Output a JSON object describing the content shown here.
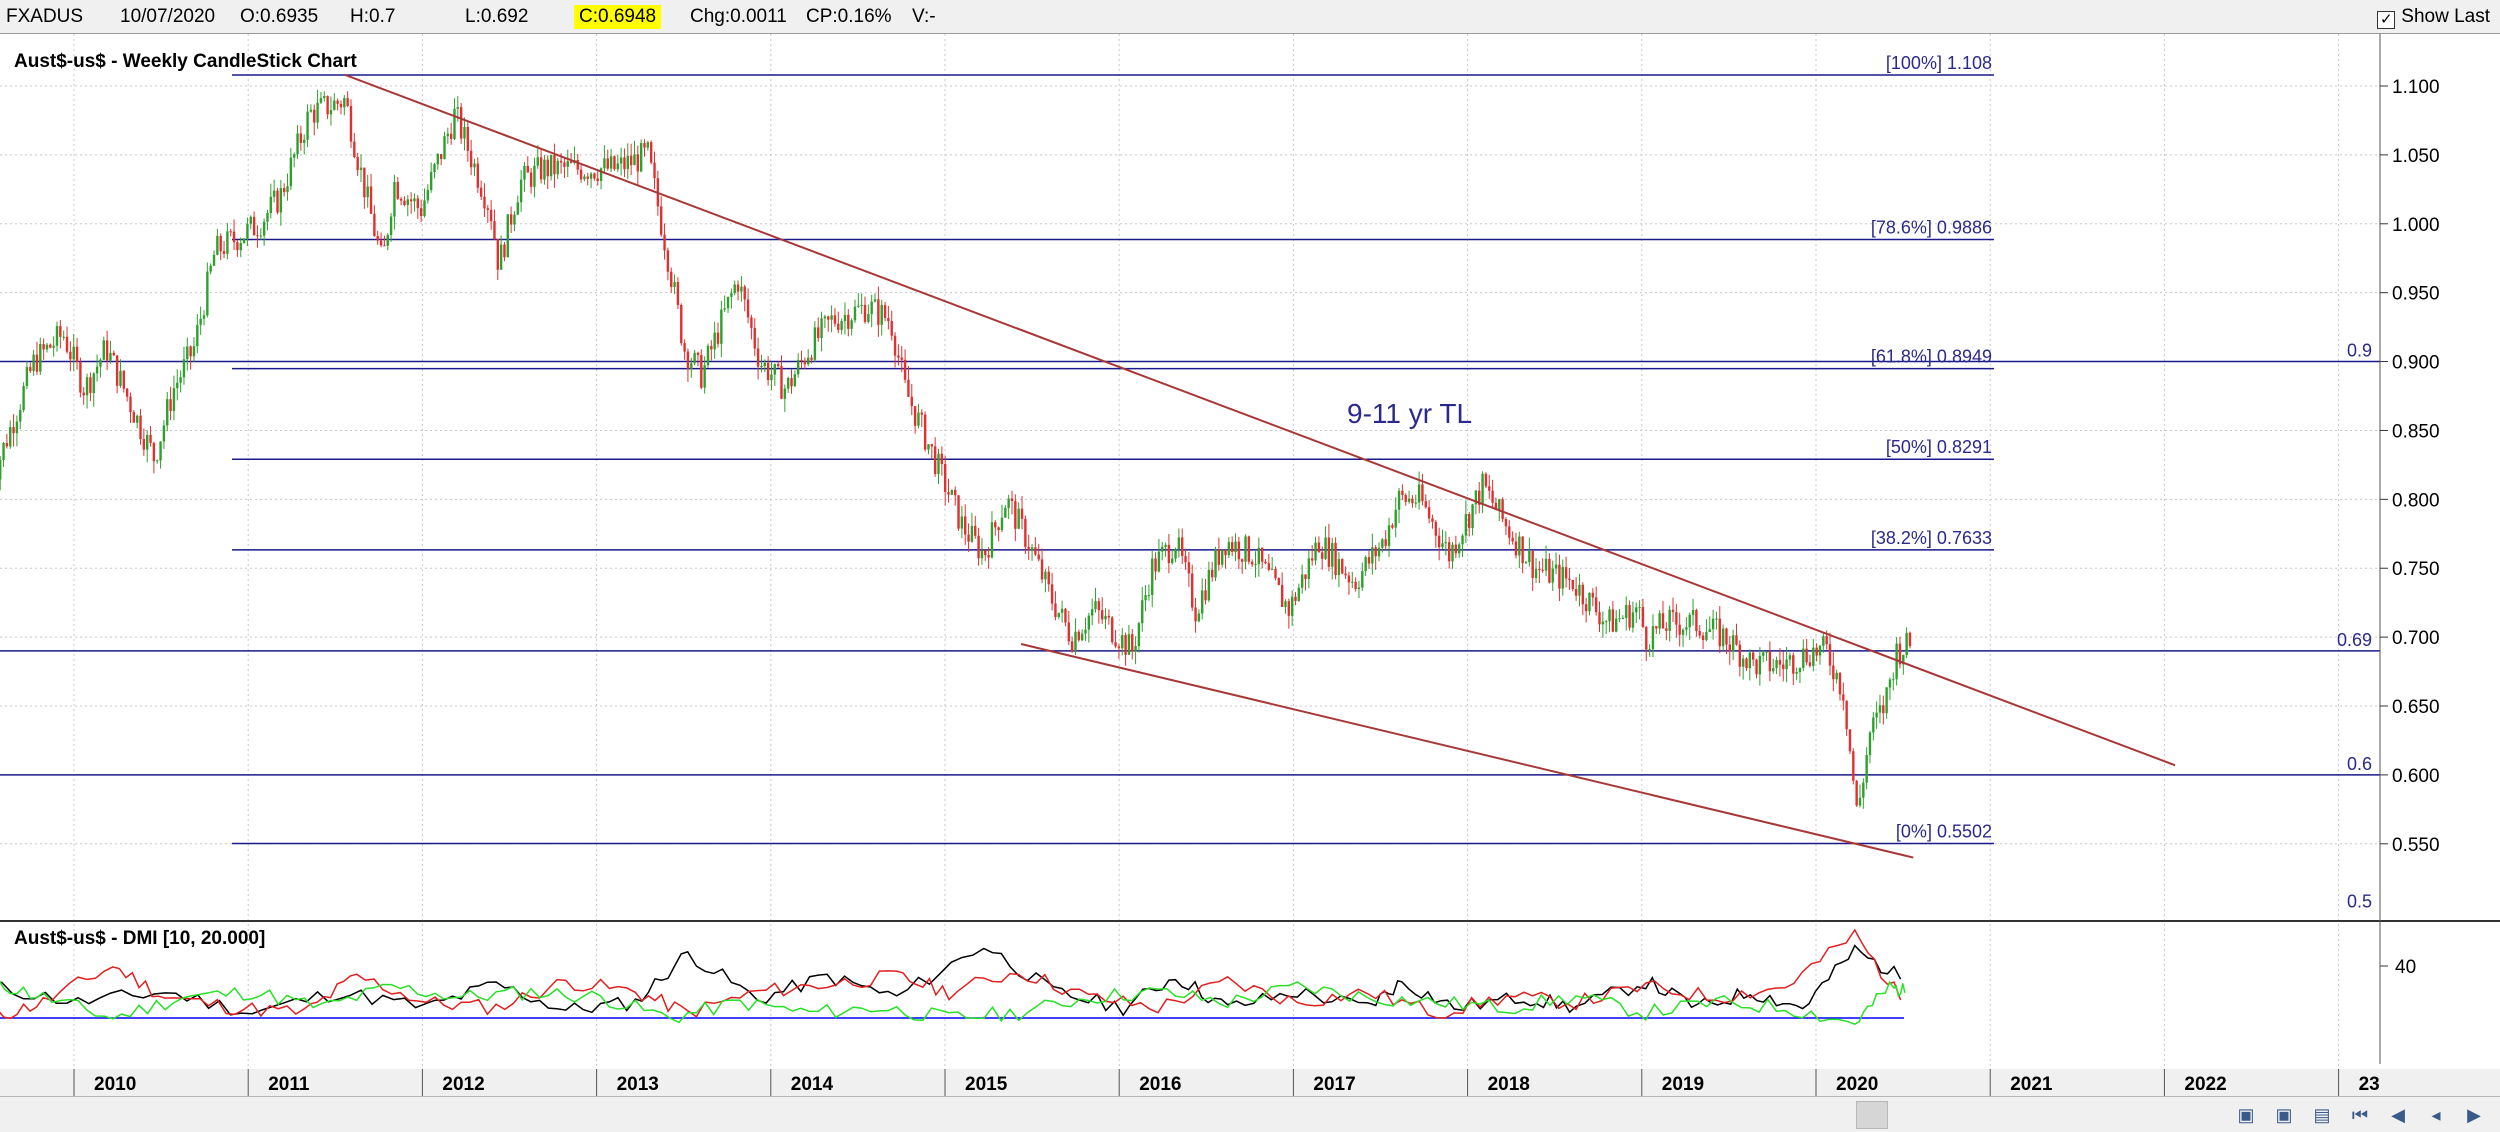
{
  "topbar": {
    "symbol": "FXADUS",
    "date": "10/07/2020",
    "open": "O:0.6935",
    "high": "H:0.7",
    "low": "L:0.692",
    "close": "C:0.6948",
    "change": "Chg:0.0011",
    "change_pct": "CP:0.16%",
    "volume": "V:-",
    "show_last_label": "Show Last",
    "show_last_checked": true
  },
  "main_panel": {
    "title": "Aust$-us$ - Weekly CandleStick Chart",
    "trendline_label": "9-11 yr TL",
    "colors": {
      "up": "#2ea02e",
      "down": "#e03030",
      "trendline": "#a83838",
      "hline": "#1a1a8c"
    }
  },
  "chart_data": [
    {
      "type": "candlestick",
      "title": "Aust$-us$ - Weekly CandleStick Chart",
      "x": [
        "2010",
        "2011",
        "2012",
        "2013",
        "2014",
        "2015",
        "2016",
        "2017",
        "2018",
        "2019",
        "2020",
        "2021",
        "2022",
        "23"
      ],
      "ylim": [
        0.5,
        1.12
      ],
      "y_ticks": [
        "1.100",
        "1.050",
        "1.000",
        "0.950",
        "0.900",
        "0.850",
        "0.800",
        "0.750",
        "0.700",
        "0.650",
        "0.600",
        "0.550"
      ],
      "grid": true,
      "weekly_close_path": [
        [
          "2009-07-01",
          0.81
        ],
        [
          "2009-10-01",
          0.9
        ],
        [
          "2009-12-01",
          0.92
        ],
        [
          "2010-01-15",
          0.88
        ],
        [
          "2010-03-01",
          0.91
        ],
        [
          "2010-05-15",
          0.85
        ],
        [
          "2010-06-10",
          0.83
        ],
        [
          "2010-07-20",
          0.88
        ],
        [
          "2010-09-01",
          0.91
        ],
        [
          "2010-10-15",
          0.98
        ],
        [
          "2010-12-01",
          0.99
        ],
        [
          "2011-01-15",
          1.0
        ],
        [
          "2011-03-01",
          1.02
        ],
        [
          "2011-05-01",
          1.08
        ],
        [
          "2011-07-15",
          1.09
        ],
        [
          "2011-08-15",
          1.04
        ],
        [
          "2011-10-01",
          0.97
        ],
        [
          "2011-10-25",
          1.03
        ],
        [
          "2011-12-20",
          1.01
        ],
        [
          "2012-03-01",
          1.08
        ],
        [
          "2012-05-15",
          1.01
        ],
        [
          "2012-06-01",
          0.97
        ],
        [
          "2012-07-15",
          1.03
        ],
        [
          "2012-09-01",
          1.04
        ],
        [
          "2012-11-01",
          1.04
        ],
        [
          "2013-02-01",
          1.04
        ],
        [
          "2013-04-10",
          1.05
        ],
        [
          "2013-05-20",
          0.98
        ],
        [
          "2013-06-25",
          0.91
        ],
        [
          "2013-08-01",
          0.89
        ],
        [
          "2013-10-15",
          0.96
        ],
        [
          "2013-12-01",
          0.9
        ],
        [
          "2014-01-25",
          0.88
        ],
        [
          "2014-03-15",
          0.91
        ],
        [
          "2014-05-01",
          0.93
        ],
        [
          "2014-07-15",
          0.94
        ],
        [
          "2014-09-01",
          0.93
        ],
        [
          "2014-10-01",
          0.88
        ],
        [
          "2014-12-01",
          0.83
        ],
        [
          "2015-01-30",
          0.78
        ],
        [
          "2015-03-15",
          0.76
        ],
        [
          "2015-05-01",
          0.8
        ],
        [
          "2015-06-15",
          0.77
        ],
        [
          "2015-08-01",
          0.73
        ],
        [
          "2015-09-15",
          0.7
        ],
        [
          "2015-11-01",
          0.72
        ],
        [
          "2016-01-20",
          0.69
        ],
        [
          "2016-03-01",
          0.75
        ],
        [
          "2016-04-20",
          0.77
        ],
        [
          "2016-06-01",
          0.72
        ],
        [
          "2016-08-01",
          0.77
        ],
        [
          "2016-10-01",
          0.76
        ],
        [
          "2016-12-15",
          0.72
        ],
        [
          "2017-02-15",
          0.77
        ],
        [
          "2017-05-01",
          0.74
        ],
        [
          "2017-07-01",
          0.77
        ],
        [
          "2017-08-01",
          0.8
        ],
        [
          "2017-09-15",
          0.8
        ],
        [
          "2017-11-15",
          0.76
        ],
        [
          "2018-01-25",
          0.81
        ],
        [
          "2018-03-15",
          0.78
        ],
        [
          "2018-05-15",
          0.75
        ],
        [
          "2018-08-01",
          0.74
        ],
        [
          "2018-10-15",
          0.71
        ],
        [
          "2018-12-15",
          0.72
        ],
        [
          "2019-01-02",
          0.7
        ],
        [
          "2019-02-15",
          0.71
        ],
        [
          "2019-04-15",
          0.71
        ],
        [
          "2019-06-15",
          0.7
        ],
        [
          "2019-08-15",
          0.68
        ],
        [
          "2019-10-15",
          0.68
        ],
        [
          "2019-12-15",
          0.69
        ],
        [
          "2020-01-15",
          0.69
        ],
        [
          "2020-02-20",
          0.66
        ],
        [
          "2020-03-19",
          0.57
        ],
        [
          "2020-04-15",
          0.63
        ],
        [
          "2020-05-15",
          0.65
        ],
        [
          "2020-06-10",
          0.69
        ],
        [
          "2020-07-10",
          0.6948
        ]
      ],
      "fibonacci": [
        {
          "label": "[100%] 1.108",
          "value": 1.108
        },
        {
          "label": "[78.6%] 0.9886",
          "value": 0.9886
        },
        {
          "label": "[61.8%] 0.8949",
          "value": 0.8949
        },
        {
          "label": "[50%] 0.8291",
          "value": 0.8291
        },
        {
          "label": "[38.2%] 0.7633",
          "value": 0.7633
        },
        {
          "label": "[0%] 0.5502",
          "value": 0.5502
        }
      ],
      "horizontal_lines": [
        {
          "label": "0.9",
          "value": 0.9
        },
        {
          "label": "0.69",
          "value": 0.69
        },
        {
          "label": "0.6",
          "value": 0.6
        },
        {
          "label": "0.5",
          "value": 0.5
        }
      ],
      "trendlines": [
        {
          "label": "9-11 yr TL",
          "points": [
            [
              "2011-07-15",
              1.108
            ],
            [
              "2022-01-15",
              0.607
            ]
          ]
        },
        {
          "points": [
            [
              "2015-06-01",
              0.695
            ],
            [
              "2020-07-15",
              0.54
            ]
          ]
        }
      ]
    },
    {
      "type": "line",
      "title": "Aust$-us$ - DMI [10, 20.000]",
      "y_ticks": [
        "40"
      ],
      "series": [
        {
          "color": "#000000",
          "values": [
            [
              2009.5,
              32
            ],
            [
              2010.0,
              26
            ],
            [
              2010.5,
              30
            ],
            [
              2011.0,
              22
            ],
            [
              2011.5,
              30
            ],
            [
              2012.0,
              24
            ],
            [
              2012.4,
              33
            ],
            [
              2012.8,
              23
            ],
            [
              2013.2,
              26
            ],
            [
              2013.5,
              45
            ],
            [
              2013.9,
              27
            ],
            [
              2014.3,
              36
            ],
            [
              2014.7,
              28
            ],
            [
              2015.2,
              48
            ],
            [
              2015.6,
              30
            ],
            [
              2016.0,
              24
            ],
            [
              2016.3,
              36
            ],
            [
              2016.6,
              24
            ],
            [
              2017.0,
              30
            ],
            [
              2017.4,
              24
            ],
            [
              2017.6,
              34
            ],
            [
              2017.9,
              24
            ],
            [
              2018.3,
              28
            ],
            [
              2018.6,
              24
            ],
            [
              2019.0,
              34
            ],
            [
              2019.3,
              24
            ],
            [
              2019.6,
              30
            ],
            [
              2019.9,
              24
            ],
            [
              2020.2,
              46
            ],
            [
              2020.5,
              34
            ]
          ]
        },
        {
          "color": "#e02020",
          "values": [
            [
              2009.5,
              20
            ],
            [
              2009.8,
              26
            ],
            [
              2010.2,
              40
            ],
            [
              2010.5,
              28
            ],
            [
              2010.9,
              24
            ],
            [
              2011.3,
              22
            ],
            [
              2011.6,
              36
            ],
            [
              2012.0,
              26
            ],
            [
              2012.4,
              24
            ],
            [
              2012.8,
              34
            ],
            [
              2013.2,
              30
            ],
            [
              2013.5,
              22
            ],
            [
              2013.9,
              30
            ],
            [
              2014.3,
              33
            ],
            [
              2014.7,
              36
            ],
            [
              2015.0,
              30
            ],
            [
              2015.4,
              38
            ],
            [
              2015.8,
              28
            ],
            [
              2016.2,
              24
            ],
            [
              2016.6,
              34
            ],
            [
              2017.0,
              26
            ],
            [
              2017.4,
              30
            ],
            [
              2017.8,
              22
            ],
            [
              2018.2,
              28
            ],
            [
              2018.6,
              26
            ],
            [
              2019.0,
              32
            ],
            [
              2019.4,
              28
            ],
            [
              2019.8,
              32
            ],
            [
              2020.2,
              52
            ],
            [
              2020.5,
              24
            ]
          ]
        },
        {
          "color": "#28e028",
          "values": [
            [
              2009.5,
              34
            ],
            [
              2009.8,
              28
            ],
            [
              2010.2,
              20
            ],
            [
              2010.6,
              28
            ],
            [
              2011.0,
              30
            ],
            [
              2011.4,
              24
            ],
            [
              2011.8,
              32
            ],
            [
              2012.2,
              28
            ],
            [
              2012.6,
              30
            ],
            [
              2013.0,
              28
            ],
            [
              2013.4,
              20
            ],
            [
              2013.8,
              26
            ],
            [
              2014.2,
              22
            ],
            [
              2014.6,
              24
            ],
            [
              2015.0,
              20
            ],
            [
              2015.4,
              22
            ],
            [
              2015.8,
              28
            ],
            [
              2016.2,
              30
            ],
            [
              2016.6,
              26
            ],
            [
              2017.0,
              32
            ],
            [
              2017.4,
              28
            ],
            [
              2017.8,
              26
            ],
            [
              2018.2,
              24
            ],
            [
              2018.6,
              28
            ],
            [
              2019.0,
              22
            ],
            [
              2019.4,
              26
            ],
            [
              2019.8,
              24
            ],
            [
              2020.2,
              18
            ],
            [
              2020.4,
              32
            ],
            [
              2020.5,
              30
            ]
          ]
        }
      ],
      "reference_line": {
        "value": 20,
        "color": "#0000ff"
      }
    }
  ],
  "nav_icons": [
    "zoom-in-icon",
    "zoom-out-icon",
    "fit-icon",
    "first-icon",
    "prev-page-icon",
    "prev-icon",
    "next-icon"
  ]
}
